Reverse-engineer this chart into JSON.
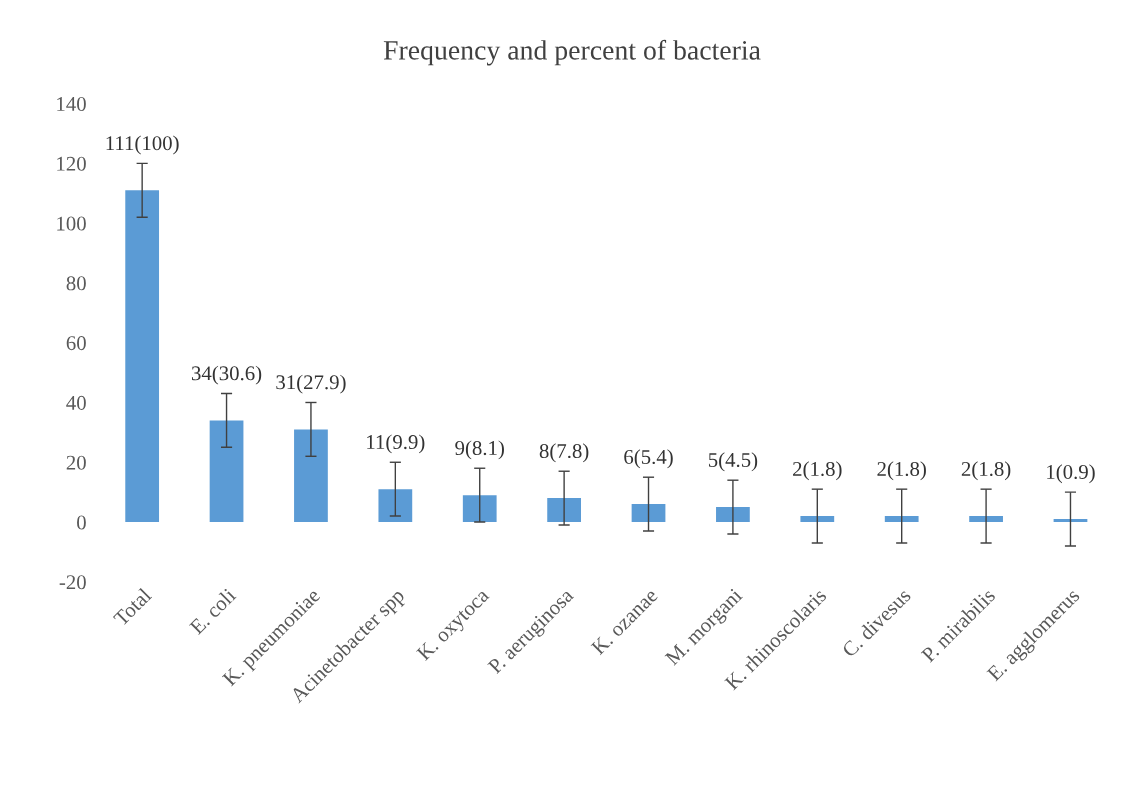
{
  "chart_data": {
    "type": "bar",
    "title": "Frequency and percent of bacteria",
    "categories": [
      "Total",
      "E. coli",
      "K. pneumoniae",
      "Acinetobacter spp",
      "K. oxytoca",
      "P. aeruginosa",
      "K. ozanae",
      "M. morgani",
      "K. rhinoscolaris",
      "C. divesus",
      "P. mirabilis",
      "E. agglomerus"
    ],
    "values": [
      111,
      34,
      31,
      11,
      9,
      8,
      6,
      5,
      2,
      2,
      2,
      1
    ],
    "errors": [
      9,
      9,
      9,
      9,
      9,
      9,
      9,
      9,
      9,
      9,
      9,
      9
    ],
    "value_labels": [
      "111(100)",
      "34(30.6)",
      "31(27.9)",
      "11(9.9)",
      "9(8.1)",
      "8(7.8)",
      "6(5.4)",
      "5(4.5)",
      "2(1.8)",
      "2(1.8)",
      "2(1.8)",
      "1(0.9)"
    ],
    "color": "#5b9bd5",
    "ylim": [
      -20,
      140
    ],
    "yticks": [
      -20,
      0,
      20,
      40,
      60,
      80,
      100,
      120,
      140
    ],
    "grid": false,
    "legend": false
  }
}
